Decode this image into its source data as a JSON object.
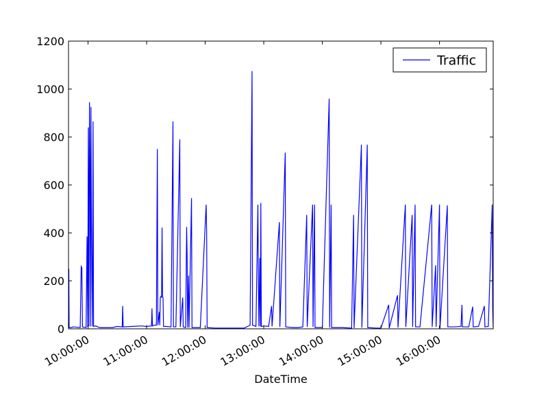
{
  "chart_data": {
    "type": "line",
    "title": "",
    "xlabel": "DateTime",
    "ylabel": "",
    "ylim": [
      0,
      1200
    ],
    "xlim": [
      "09:40:00",
      "16:55:00"
    ],
    "yticks": [
      0,
      200,
      400,
      600,
      800,
      1000,
      1200
    ],
    "xticks": [
      "10:00:00",
      "11:00:00",
      "12:00:00",
      "13:00:00",
      "14:00:00",
      "15:00:00",
      "16:00:00"
    ],
    "grid": false,
    "legend": {
      "position": "top-right",
      "entries": [
        "Traffic"
      ]
    },
    "series": [
      {
        "name": "Traffic",
        "color": "#0000ff",
        "points": [
          [
            "09:40:00",
            5
          ],
          [
            "09:40:20",
            250
          ],
          [
            "09:40:40",
            5
          ],
          [
            "09:43:00",
            5
          ],
          [
            "09:45:00",
            8
          ],
          [
            "09:52:00",
            5
          ],
          [
            "09:53:00",
            260
          ],
          [
            "09:53:40",
            255
          ],
          [
            "09:54:20",
            8
          ],
          [
            "09:58:00",
            5
          ],
          [
            "09:59:00",
            385
          ],
          [
            "09:59:40",
            8
          ],
          [
            "10:00:20",
            840
          ],
          [
            "10:00:50",
            10
          ],
          [
            "10:01:30",
            945
          ],
          [
            "10:02:00",
            680
          ],
          [
            "10:02:30",
            10
          ],
          [
            "10:03:00",
            925
          ],
          [
            "10:03:30",
            440
          ],
          [
            "10:04:00",
            180
          ],
          [
            "10:04:30",
            10
          ],
          [
            "10:05:10",
            865
          ],
          [
            "10:05:40",
            10
          ],
          [
            "10:08:00",
            12
          ],
          [
            "10:10:00",
            8
          ],
          [
            "10:12:00",
            5
          ],
          [
            "10:25:00",
            5
          ],
          [
            "10:30:00",
            10
          ],
          [
            "10:35:00",
            8
          ],
          [
            "10:35:30",
            95
          ],
          [
            "10:36:00",
            8
          ],
          [
            "10:45:00",
            10
          ],
          [
            "10:55:00",
            12
          ],
          [
            "11:00:00",
            10
          ],
          [
            "11:05:00",
            12
          ],
          [
            "11:05:30",
            85
          ],
          [
            "11:06:00",
            12
          ],
          [
            "11:08:00",
            15
          ],
          [
            "11:10:00",
            15
          ],
          [
            "11:11:00",
            750
          ],
          [
            "11:11:30",
            15
          ],
          [
            "11:13:00",
            70
          ],
          [
            "11:13:30",
            15
          ],
          [
            "11:14:00",
            130
          ],
          [
            "11:14:40",
            135
          ],
          [
            "11:15:20",
            130
          ],
          [
            "11:15:50",
            422
          ],
          [
            "11:16:20",
            135
          ],
          [
            "11:16:50",
            130
          ],
          [
            "11:17:20",
            10
          ],
          [
            "11:20:00",
            10
          ],
          [
            "11:25:00",
            8
          ],
          [
            "11:27:00",
            865
          ],
          [
            "11:27:30",
            8
          ],
          [
            "11:30:00",
            8
          ],
          [
            "11:34:00",
            790
          ],
          [
            "11:34:30",
            8
          ],
          [
            "11:37:00",
            130
          ],
          [
            "11:37:30",
            8
          ],
          [
            "11:40:00",
            5
          ],
          [
            "11:41:00",
            425
          ],
          [
            "11:41:30",
            310
          ],
          [
            "11:42:00",
            5
          ],
          [
            "11:43:00",
            222
          ],
          [
            "11:43:30",
            5
          ],
          [
            "11:46:00",
            545
          ],
          [
            "11:46:30",
            5
          ],
          [
            "11:55:00",
            5
          ],
          [
            "12:01:00",
            518
          ],
          [
            "12:01:30",
            400
          ],
          [
            "12:02:00",
            5
          ],
          [
            "12:10:00",
            3
          ],
          [
            "12:20:00",
            3
          ],
          [
            "12:30:00",
            3
          ],
          [
            "12:40:00",
            3
          ],
          [
            "12:46:00",
            15
          ],
          [
            "12:48:00",
            1075
          ],
          [
            "12:48:30",
            15
          ],
          [
            "12:52:00",
            10
          ],
          [
            "12:54:00",
            518
          ],
          [
            "12:54:30",
            200
          ],
          [
            "12:55:00",
            10
          ],
          [
            "12:56:00",
            295
          ],
          [
            "12:56:30",
            10
          ],
          [
            "12:57:00",
            525
          ],
          [
            "12:57:30",
            10
          ],
          [
            "13:00:00",
            12
          ],
          [
            "13:05:00",
            10
          ],
          [
            "13:08:00",
            95
          ],
          [
            "13:08:30",
            10
          ],
          [
            "13:16:00",
            445
          ],
          [
            "13:16:30",
            8
          ],
          [
            "13:22:00",
            735
          ],
          [
            "13:22:30",
            8
          ],
          [
            "13:30:00",
            5
          ],
          [
            "13:35:00",
            5
          ],
          [
            "13:40:00",
            8
          ],
          [
            "13:44:00",
            475
          ],
          [
            "13:44:30",
            8
          ],
          [
            "13:50:00",
            518
          ],
          [
            "13:50:30",
            8
          ],
          [
            "13:52:00",
            518
          ],
          [
            "13:52:30",
            5
          ],
          [
            "13:55:00",
            5
          ],
          [
            "14:00:00",
            5
          ],
          [
            "14:07:00",
            960
          ],
          [
            "14:07:30",
            5
          ],
          [
            "14:09:00",
            518
          ],
          [
            "14:09:30",
            5
          ],
          [
            "14:20:00",
            5
          ],
          [
            "14:30:00",
            3
          ],
          [
            "14:32:00",
            475
          ],
          [
            "14:32:30",
            3
          ],
          [
            "14:40:00",
            768
          ],
          [
            "14:40:30",
            5
          ],
          [
            "14:46:00",
            768
          ],
          [
            "14:46:30",
            5
          ],
          [
            "14:55:00",
            3
          ],
          [
            "15:00:00",
            3
          ],
          [
            "15:08:00",
            100
          ],
          [
            "15:08:30",
            3
          ],
          [
            "15:17:00",
            140
          ],
          [
            "15:17:30",
            5
          ],
          [
            "15:25:00",
            518
          ],
          [
            "15:25:30",
            8
          ],
          [
            "15:32:00",
            475
          ],
          [
            "15:32:30",
            8
          ],
          [
            "15:35:00",
            518
          ],
          [
            "15:35:30",
            8
          ],
          [
            "15:40:00",
            8
          ],
          [
            "15:52:00",
            518
          ],
          [
            "15:52:30",
            8
          ],
          [
            "15:56:00",
            265
          ],
          [
            "15:56:30",
            8
          ],
          [
            "16:00:00",
            518
          ],
          [
            "16:00:30",
            2
          ],
          [
            "16:08:00",
            515
          ],
          [
            "16:08:30",
            8
          ],
          [
            "16:15:00",
            8
          ],
          [
            "16:22:00",
            10
          ],
          [
            "16:23:00",
            100
          ],
          [
            "16:23:30",
            8
          ],
          [
            "16:30:00",
            8
          ],
          [
            "16:34:00",
            92
          ],
          [
            "16:34:30",
            8
          ],
          [
            "16:40:00",
            10
          ],
          [
            "16:46:00",
            95
          ],
          [
            "16:46:30",
            8
          ],
          [
            "16:50:00",
            10
          ],
          [
            "16:54:00",
            518
          ],
          [
            "16:54:30",
            75
          ],
          [
            "16:55:00",
            5
          ]
        ]
      }
    ]
  }
}
